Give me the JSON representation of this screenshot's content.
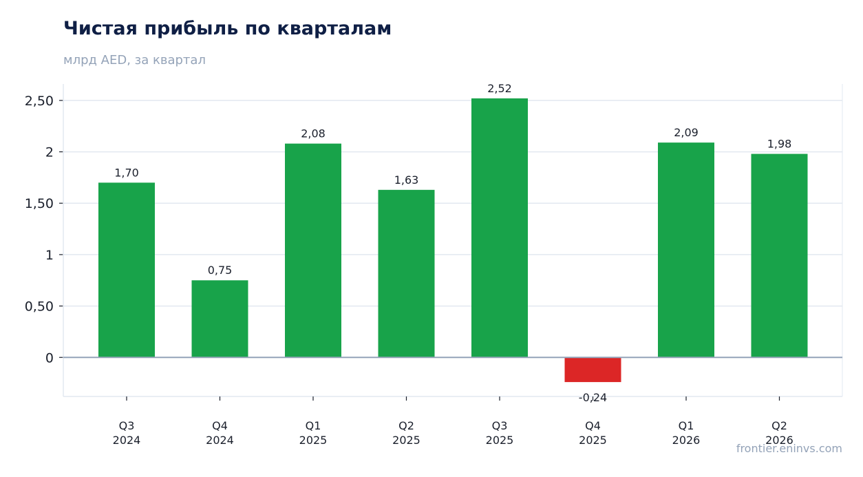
{
  "header": {
    "title": "Чистая прибыль по кварталам",
    "subtitle": "млрд AED, за квартал"
  },
  "footer": {
    "source": "frontier.eninvs.com"
  },
  "colors": {
    "positive": "#18a34a",
    "negative": "#dc2626",
    "grid": "#e2e8f0",
    "zero_line": "#94a3b8",
    "axis": "#cbd5e1",
    "text": "#1a1f2b"
  },
  "chart_data": {
    "type": "bar",
    "title": "Чистая прибыль по кварталам",
    "subtitle": "млрд AED, за квартал",
    "categories": [
      [
        "Q3",
        "2024"
      ],
      [
        "Q4",
        "2024"
      ],
      [
        "Q1",
        "2025"
      ],
      [
        "Q2",
        "2025"
      ],
      [
        "Q3",
        "2025"
      ],
      [
        "Q4",
        "2025"
      ],
      [
        "Q1",
        "2026"
      ],
      [
        "Q2",
        "2026"
      ]
    ],
    "values": [
      1.7,
      0.75,
      2.08,
      1.63,
      2.52,
      -0.24,
      2.09,
      1.98
    ],
    "value_labels": [
      "1,70",
      "0,75",
      "2,08",
      "1,63",
      "2,52",
      "-0,24",
      "2,09",
      "1,98"
    ],
    "yticks": [
      0,
      0.5,
      1,
      1.5,
      2,
      2.5
    ],
    "ytick_labels": [
      "0",
      "0,50",
      "1",
      "1,50",
      "2",
      "2,50"
    ],
    "ylim": [
      -0.38,
      2.66
    ],
    "grid": true,
    "legend": "none"
  }
}
